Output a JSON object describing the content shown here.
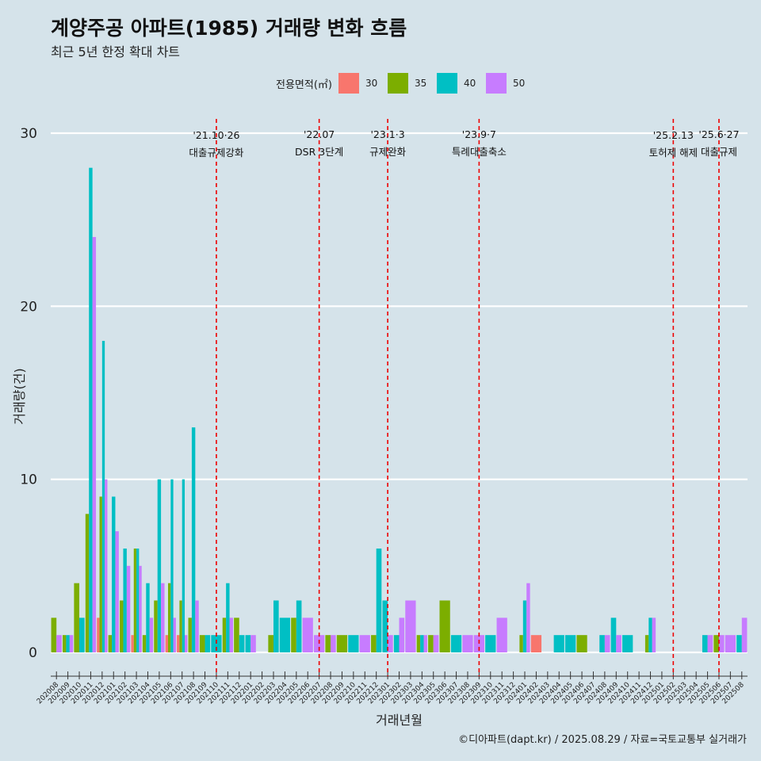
{
  "header": {
    "title": "계양주공 아파트(1985) 거래량 변화 흐름",
    "subtitle": "최근 5년 한정 확대 차트"
  },
  "caption": "©디아파트(dapt.kr) / 2025.08.29 / 자료=국토교통부 실거래가",
  "legend": {
    "title": "전용면적(㎡)",
    "items": [
      {
        "label": "30",
        "color": "#f8766d"
      },
      {
        "label": "35",
        "color": "#7cae00"
      },
      {
        "label": "40",
        "color": "#00bfc4"
      },
      {
        "label": "50",
        "color": "#c77cff"
      }
    ]
  },
  "chart_data": {
    "type": "bar",
    "xlabel": "거래년월",
    "ylabel": "거래량(건)",
    "ylim": [
      0,
      30
    ],
    "yticks": [
      0,
      10,
      20,
      30
    ],
    "grid": true,
    "legend_position": "top",
    "categories": [
      "202008",
      "202009",
      "202010",
      "202011",
      "202012",
      "202101",
      "202102",
      "202103",
      "202104",
      "202105",
      "202106",
      "202107",
      "202108",
      "202109",
      "202110",
      "202111",
      "202112",
      "202201",
      "202202",
      "202203",
      "202204",
      "202205",
      "202206",
      "202207",
      "202208",
      "202209",
      "202210",
      "202211",
      "202212",
      "202301",
      "202302",
      "202303",
      "202304",
      "202305",
      "202306",
      "202307",
      "202308",
      "202309",
      "202310",
      "202311",
      "202312",
      "202401",
      "202402",
      "202403",
      "202404",
      "202405",
      "202406",
      "202407",
      "202408",
      "202409",
      "202410",
      "202411",
      "202412",
      "202501",
      "202502",
      "202503",
      "202504",
      "202505",
      "202506",
      "202507",
      "202508"
    ],
    "series": [
      {
        "name": "30",
        "color": "#f8766d",
        "values": [
          0,
          0,
          0,
          0,
          2,
          0,
          0,
          1,
          0,
          0,
          1,
          1,
          0,
          0,
          0,
          0,
          0,
          0,
          0,
          0,
          0,
          0,
          0,
          0,
          0,
          0,
          0,
          0,
          0,
          0,
          0,
          0,
          0,
          0,
          0,
          0,
          0,
          0,
          0,
          0,
          0,
          0,
          1,
          0,
          0,
          0,
          0,
          0,
          0,
          0,
          0,
          0,
          0,
          0,
          0,
          0,
          0,
          0,
          0,
          0,
          0
        ]
      },
      {
        "name": "35",
        "color": "#7cae00",
        "values": [
          2,
          1,
          4,
          8,
          9,
          1,
          3,
          6,
          1,
          3,
          4,
          3,
          2,
          1,
          0,
          2,
          2,
          0,
          0,
          1,
          0,
          2,
          0,
          0,
          1,
          1,
          0,
          0,
          1,
          0,
          0,
          0,
          1,
          1,
          3,
          0,
          0,
          0,
          0,
          0,
          0,
          1,
          0,
          0,
          0,
          0,
          1,
          0,
          0,
          0,
          0,
          0,
          1,
          0,
          0,
          0,
          0,
          0,
          1,
          0,
          0
        ]
      },
      {
        "name": "40",
        "color": "#00bfc4",
        "values": [
          0,
          1,
          2,
          28,
          18,
          9,
          6,
          6,
          4,
          10,
          10,
          10,
          13,
          1,
          1,
          4,
          1,
          1,
          0,
          3,
          2,
          3,
          0,
          0,
          0,
          0,
          1,
          0,
          6,
          3,
          1,
          0,
          1,
          0,
          0,
          1,
          0,
          0,
          1,
          0,
          0,
          3,
          0,
          0,
          1,
          1,
          0,
          0,
          1,
          2,
          1,
          0,
          2,
          0,
          0,
          0,
          0,
          1,
          0,
          0,
          1
        ]
      },
      {
        "name": "50",
        "color": "#c77cff",
        "values": [
          1,
          1,
          0,
          24,
          10,
          7,
          5,
          5,
          2,
          4,
          2,
          1,
          3,
          0,
          0,
          2,
          0,
          1,
          0,
          0,
          0,
          0,
          2,
          1,
          1,
          0,
          0,
          1,
          0,
          1,
          2,
          3,
          1,
          1,
          0,
          0,
          1,
          1,
          0,
          2,
          0,
          4,
          0,
          0,
          0,
          0,
          0,
          0,
          1,
          1,
          0,
          0,
          2,
          0,
          0,
          0,
          0,
          1,
          1,
          1,
          2
        ]
      }
    ],
    "annotations": [
      {
        "at": "202110",
        "date": "'21.10·26",
        "label": "대출규제강화"
      },
      {
        "at": "202207",
        "date": "'22.07",
        "label": "DSR 3단계"
      },
      {
        "at": "202301",
        "date": "'23.1·3",
        "label": "규제완화"
      },
      {
        "at": "202309",
        "date": "'23.9·7",
        "label": "특례대출축소"
      },
      {
        "at": "202502",
        "date": "'25.2.13",
        "label": "토허제 해제"
      },
      {
        "at": "202506",
        "date": "'25.6·27",
        "label": "대출규제"
      }
    ]
  }
}
